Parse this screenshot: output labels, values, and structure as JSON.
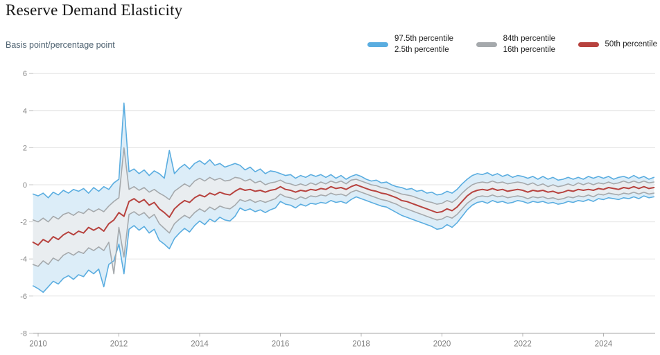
{
  "header": {
    "title": "Reserve Demand Elasticity",
    "y_axis_title": "Basis point/percentage point"
  },
  "legend": {
    "items": [
      {
        "line1": "97.5th percentile",
        "line2": "2.5th percentile",
        "color": "#5aade0"
      },
      {
        "line1": "84th percentile",
        "line2": "16th percentile",
        "color": "#a5a9ac"
      },
      {
        "line1": "50th percentile",
        "color": "#b7423e"
      }
    ]
  },
  "chart_data": {
    "type": "line",
    "title": "Reserve Demand Elasticity",
    "xlabel": "",
    "ylabel": "Basis point/percentage point",
    "ylim": [
      -8,
      6
    ],
    "xlim": [
      2009.875,
      2025.25
    ],
    "y_ticks": [
      6,
      4,
      2,
      0,
      -2,
      -4,
      -6,
      -8
    ],
    "x_ticks": [
      2010,
      2012,
      2014,
      2016,
      2018,
      2020,
      2022,
      2024
    ],
    "grid": true,
    "legend_position": "top-right",
    "x_start": 2009.875,
    "x_step": 0.125,
    "bands": [
      {
        "upper": "97.5th percentile",
        "lower": "2.5th percentile",
        "fill": "#dcedf8"
      },
      {
        "upper": "84th percentile",
        "lower": "16th percentile",
        "fill": "#e9edf0"
      }
    ],
    "series": [
      {
        "name": "97.5th percentile",
        "color": "#5aade0",
        "values": [
          -0.5,
          -0.6,
          -0.45,
          -0.7,
          -0.4,
          -0.55,
          -0.3,
          -0.45,
          -0.25,
          -0.35,
          -0.2,
          -0.45,
          -0.15,
          -0.35,
          -0.1,
          -0.25,
          0.1,
          0.3,
          4.4,
          0.7,
          0.85,
          0.6,
          0.8,
          0.5,
          0.75,
          0.6,
          0.35,
          1.85,
          0.6,
          0.9,
          1.1,
          0.85,
          1.15,
          1.3,
          1.1,
          1.35,
          1.05,
          1.15,
          0.95,
          1.05,
          1.15,
          1.05,
          0.8,
          0.95,
          0.7,
          0.85,
          0.6,
          0.75,
          0.7,
          0.6,
          0.5,
          0.55,
          0.35,
          0.5,
          0.4,
          0.55,
          0.45,
          0.55,
          0.4,
          0.55,
          0.35,
          0.5,
          0.3,
          0.45,
          0.55,
          0.45,
          0.3,
          0.2,
          0.25,
          0.1,
          0.15,
          0,
          -0.1,
          -0.15,
          -0.25,
          -0.2,
          -0.35,
          -0.3,
          -0.45,
          -0.4,
          -0.55,
          -0.5,
          -0.35,
          -0.45,
          -0.25,
          0.05,
          0.3,
          0.5,
          0.6,
          0.55,
          0.65,
          0.5,
          0.6,
          0.45,
          0.55,
          0.4,
          0.5,
          0.45,
          0.35,
          0.45,
          0.3,
          0.45,
          0.3,
          0.4,
          0.25,
          0.3,
          0.4,
          0.3,
          0.4,
          0.3,
          0.45,
          0.35,
          0.45,
          0.35,
          0.45,
          0.3,
          0.4,
          0.45,
          0.35,
          0.5,
          0.35,
          0.45,
          0.3,
          0.4
        ]
      },
      {
        "name": "2.5th percentile",
        "color": "#5aade0",
        "values": [
          -5.45,
          -5.6,
          -5.8,
          -5.5,
          -5.2,
          -5.35,
          -5.05,
          -4.9,
          -5.1,
          -4.85,
          -4.95,
          -4.6,
          -4.8,
          -4.55,
          -5.5,
          -4.3,
          -4.1,
          -3.2,
          -4.8,
          -2.4,
          -2.2,
          -2.45,
          -2.25,
          -2.6,
          -2.4,
          -3,
          -3.2,
          -3.45,
          -2.9,
          -2.6,
          -2.35,
          -2.55,
          -2.2,
          -1.95,
          -2.15,
          -1.85,
          -2,
          -1.75,
          -1.9,
          -1.95,
          -1.7,
          -1.25,
          -1.4,
          -1.3,
          -1.45,
          -1.35,
          -1.5,
          -1.35,
          -1.25,
          -0.9,
          -1.05,
          -1.1,
          -1.25,
          -1.05,
          -1.15,
          -1,
          -1.05,
          -0.95,
          -1,
          -0.85,
          -0.95,
          -0.9,
          -1,
          -0.8,
          -0.65,
          -0.75,
          -0.85,
          -0.95,
          -1.05,
          -1.15,
          -1.2,
          -1.35,
          -1.5,
          -1.65,
          -1.75,
          -1.85,
          -1.95,
          -2.05,
          -2.15,
          -2.25,
          -2.4,
          -2.35,
          -2.15,
          -2.3,
          -2.05,
          -1.7,
          -1.35,
          -1.1,
          -0.95,
          -0.9,
          -1,
          -0.85,
          -0.95,
          -0.9,
          -1,
          -0.95,
          -0.85,
          -0.9,
          -1,
          -0.9,
          -0.95,
          -0.9,
          -1,
          -0.95,
          -1.05,
          -1,
          -0.9,
          -0.95,
          -0.85,
          -0.9,
          -0.8,
          -0.9,
          -0.75,
          -0.8,
          -0.7,
          -0.75,
          -0.8,
          -0.7,
          -0.75,
          -0.65,
          -0.75,
          -0.6,
          -0.7,
          -0.65
        ]
      },
      {
        "name": "84th percentile",
        "color": "#a5a9ac",
        "values": [
          -1.9,
          -2,
          -1.8,
          -2,
          -1.7,
          -1.85,
          -1.6,
          -1.5,
          -1.65,
          -1.45,
          -1.55,
          -1.3,
          -1.45,
          -1.3,
          -1.45,
          -1.15,
          -0.9,
          -0.7,
          2,
          -0.25,
          -0.1,
          -0.3,
          -0.15,
          -0.4,
          -0.25,
          -0.45,
          -0.6,
          -0.8,
          -0.35,
          -0.15,
          0.05,
          -0.1,
          0.2,
          0.35,
          0.2,
          0.4,
          0.25,
          0.35,
          0.2,
          0.25,
          0.4,
          0.35,
          0.2,
          0.3,
          0.1,
          0.2,
          0,
          0.1,
          0.15,
          0.25,
          0.1,
          0.05,
          -0.05,
          0.05,
          -0.05,
          0.1,
          0,
          0.15,
          0.05,
          0.2,
          0.1,
          0.2,
          0.05,
          0.25,
          0.3,
          0.2,
          0.1,
          0,
          -0.05,
          -0.15,
          -0.2,
          -0.3,
          -0.4,
          -0.5,
          -0.55,
          -0.6,
          -0.7,
          -0.8,
          -0.9,
          -0.95,
          -1.05,
          -1,
          -0.85,
          -0.95,
          -0.75,
          -0.45,
          -0.2,
          0,
          0.1,
          0.15,
          0.1,
          0.2,
          0.1,
          0.15,
          0.05,
          0.1,
          0.15,
          0.1,
          0,
          0.1,
          -0.05,
          0.05,
          -0.1,
          0,
          -0.1,
          -0.05,
          0.05,
          -0.05,
          0.1,
          0,
          0.1,
          0,
          0.1,
          0.05,
          0.15,
          0.05,
          0.1,
          0.2,
          0.1,
          0.2,
          0.1,
          0.2,
          0.1,
          0.15
        ]
      },
      {
        "name": "16th percentile",
        "color": "#a5a9ac",
        "values": [
          -4.3,
          -4.4,
          -4.1,
          -4.3,
          -3.95,
          -4.1,
          -3.8,
          -3.65,
          -3.8,
          -3.6,
          -3.7,
          -3.4,
          -3.55,
          -3.35,
          -3.55,
          -3.1,
          -4.8,
          -2.3,
          -3.9,
          -1.6,
          -1.45,
          -1.65,
          -1.5,
          -1.8,
          -1.6,
          -2.1,
          -2.35,
          -2.6,
          -2.1,
          -1.85,
          -1.65,
          -1.8,
          -1.5,
          -1.3,
          -1.45,
          -1.2,
          -1.35,
          -1.15,
          -1.25,
          -1.3,
          -1.1,
          -0.8,
          -0.9,
          -0.8,
          -0.95,
          -0.85,
          -0.95,
          -0.85,
          -0.75,
          -0.5,
          -0.65,
          -0.7,
          -0.8,
          -0.65,
          -0.75,
          -0.6,
          -0.65,
          -0.55,
          -0.6,
          -0.45,
          -0.55,
          -0.5,
          -0.6,
          -0.4,
          -0.3,
          -0.4,
          -0.5,
          -0.6,
          -0.7,
          -0.8,
          -0.85,
          -0.95,
          -1.05,
          -1.2,
          -1.3,
          -1.4,
          -1.5,
          -1.6,
          -1.7,
          -1.8,
          -1.9,
          -1.85,
          -1.7,
          -1.8,
          -1.6,
          -1.3,
          -1,
          -0.8,
          -0.65,
          -0.6,
          -0.65,
          -0.55,
          -0.65,
          -0.6,
          -0.7,
          -0.65,
          -0.6,
          -0.65,
          -0.75,
          -0.65,
          -0.7,
          -0.65,
          -0.75,
          -0.7,
          -0.8,
          -0.75,
          -0.65,
          -0.7,
          -0.6,
          -0.65,
          -0.55,
          -0.65,
          -0.5,
          -0.55,
          -0.45,
          -0.5,
          -0.55,
          -0.45,
          -0.5,
          -0.4,
          -0.5,
          -0.4,
          -0.5,
          -0.45
        ]
      },
      {
        "name": "50th percentile",
        "color": "#b7423e",
        "values": [
          -3.1,
          -3.25,
          -2.95,
          -3.1,
          -2.8,
          -2.95,
          -2.7,
          -2.55,
          -2.7,
          -2.5,
          -2.6,
          -2.3,
          -2.45,
          -2.3,
          -2.5,
          -2.1,
          -1.9,
          -1.5,
          -1.7,
          -0.9,
          -0.75,
          -0.95,
          -0.8,
          -1.1,
          -0.95,
          -1.3,
          -1.5,
          -1.75,
          -1.3,
          -1.05,
          -0.85,
          -0.95,
          -0.7,
          -0.55,
          -0.65,
          -0.45,
          -0.55,
          -0.4,
          -0.5,
          -0.55,
          -0.35,
          -0.2,
          -0.3,
          -0.25,
          -0.35,
          -0.3,
          -0.4,
          -0.3,
          -0.25,
          -0.1,
          -0.25,
          -0.3,
          -0.4,
          -0.3,
          -0.35,
          -0.25,
          -0.3,
          -0.2,
          -0.25,
          -0.1,
          -0.2,
          -0.15,
          -0.25,
          -0.1,
          0,
          -0.1,
          -0.2,
          -0.3,
          -0.35,
          -0.45,
          -0.5,
          -0.6,
          -0.7,
          -0.85,
          -0.9,
          -1,
          -1.1,
          -1.2,
          -1.3,
          -1.4,
          -1.5,
          -1.45,
          -1.3,
          -1.4,
          -1.2,
          -0.9,
          -0.6,
          -0.4,
          -0.3,
          -0.25,
          -0.3,
          -0.2,
          -0.3,
          -0.25,
          -0.35,
          -0.3,
          -0.25,
          -0.3,
          -0.4,
          -0.3,
          -0.35,
          -0.3,
          -0.4,
          -0.35,
          -0.45,
          -0.4,
          -0.3,
          -0.35,
          -0.25,
          -0.3,
          -0.25,
          -0.3,
          -0.2,
          -0.25,
          -0.15,
          -0.2,
          -0.25,
          -0.15,
          -0.2,
          -0.1,
          -0.2,
          -0.1,
          -0.2,
          -0.15
        ]
      }
    ]
  }
}
